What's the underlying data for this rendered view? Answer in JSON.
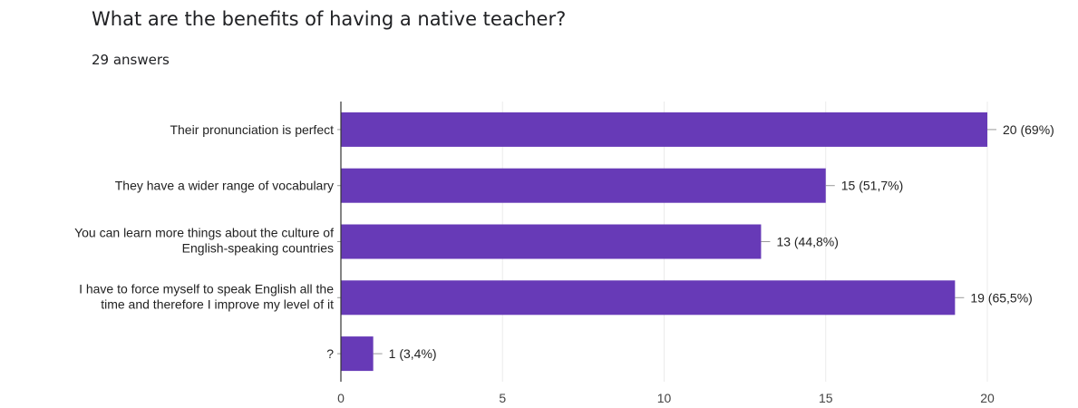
{
  "header": {
    "question": "What are the benefits of having a native teacher?",
    "answers": "29 answers"
  },
  "colors": {
    "bar": "#673ab7",
    "grid": "#ebebeb",
    "axis": "#333333",
    "leader": "#999999"
  },
  "chart_data": {
    "type": "bar",
    "orientation": "horizontal",
    "categories": [
      [
        "Their pronunciation is perfect"
      ],
      [
        "They have a wider range of vocabulary"
      ],
      [
        "You can learn more things about the culture of",
        "English-speaking countries"
      ],
      [
        "I have to force myself to speak English all the",
        "time and therefore I improve my level of it"
      ],
      [
        "?"
      ]
    ],
    "values": [
      20,
      15,
      13,
      19,
      1
    ],
    "data_labels": [
      "20 (69%)",
      "15 (51,7%)",
      "13 (44,8%)",
      "19 (65,5%)",
      "1 (3,4%)"
    ],
    "xlim": [
      0,
      20
    ],
    "xticks": [
      0,
      5,
      10,
      15,
      20
    ],
    "grid": true
  }
}
